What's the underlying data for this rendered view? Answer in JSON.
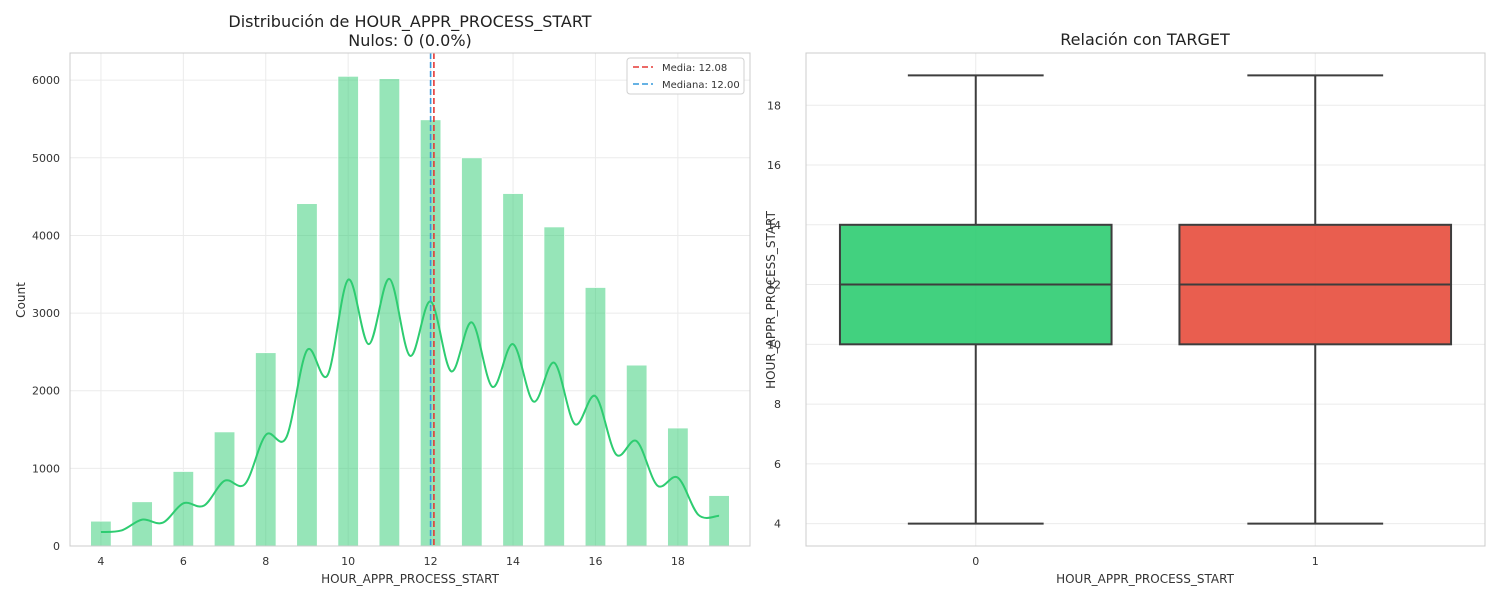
{
  "chart_data": [
    {
      "type": "bar",
      "title": "Distribución de HOUR_APPR_PROCESS_START",
      "subtitle": "Nulos: 0 (0.0%)",
      "xlabel": "HOUR_APPR_PROCESS_START",
      "ylabel": "Count",
      "xlim": [
        3.25,
        19.75
      ],
      "ylim": [
        0,
        6350
      ],
      "xticks": [
        4,
        6,
        8,
        10,
        12,
        14,
        16,
        18
      ],
      "yticks": [
        0,
        1000,
        2000,
        3000,
        4000,
        5000,
        6000
      ],
      "grid": true,
      "legend_position": "top-right",
      "bin_width": 0.5,
      "bars": [
        {
          "x": 4,
          "value": 320
        },
        {
          "x": 5,
          "value": 570
        },
        {
          "x": 6,
          "value": 960
        },
        {
          "x": 7,
          "value": 1470
        },
        {
          "x": 8,
          "value": 2490
        },
        {
          "x": 9,
          "value": 4410
        },
        {
          "x": 10,
          "value": 6050
        },
        {
          "x": 11,
          "value": 6020
        },
        {
          "x": 12,
          "value": 5490
        },
        {
          "x": 13,
          "value": 5000
        },
        {
          "x": 14,
          "value": 4540
        },
        {
          "x": 15,
          "value": 4110
        },
        {
          "x": 16,
          "value": 3330
        },
        {
          "x": 17,
          "value": 2330
        },
        {
          "x": 18,
          "value": 1520
        },
        {
          "x": 19,
          "value": 650
        }
      ],
      "kde": {
        "x": [
          4.0,
          4.5,
          5.0,
          5.5,
          6.0,
          6.5,
          7.0,
          7.5,
          8.0,
          8.5,
          9.0,
          9.5,
          10.0,
          10.5,
          11.0,
          11.5,
          12.0,
          12.5,
          13.0,
          13.5,
          14.0,
          14.5,
          15.0,
          15.5,
          16.0,
          16.5,
          17.0,
          17.5,
          18.0,
          18.5,
          19.0
        ],
        "y": [
          180,
          200,
          340,
          300,
          550,
          520,
          840,
          800,
          1430,
          1400,
          2520,
          2200,
          3430,
          2600,
          3440,
          2450,
          3150,
          2250,
          2880,
          2050,
          2600,
          1860,
          2360,
          1570,
          1930,
          1180,
          1350,
          780,
          880,
          400,
          390
        ]
      },
      "colors": {
        "bars": "#2ecc71",
        "kde": "#2ecc71",
        "mean": "#e53935",
        "median": "#3498db"
      },
      "reference_lines": [
        {
          "name": "Media",
          "value": 12.08,
          "label": "Media: 12.08"
        },
        {
          "name": "Mediana",
          "value": 12.0,
          "label": "Mediana: 12.00"
        }
      ]
    },
    {
      "type": "box",
      "title": "Relación con TARGET",
      "xlabel": "HOUR_APPR_PROCESS_START",
      "ylabel": "HOUR_APPR_PROCESS_START",
      "categories": [
        "0",
        "1"
      ],
      "ylim": [
        3.25,
        19.75
      ],
      "yticks": [
        4,
        6,
        8,
        10,
        12,
        14,
        16,
        18
      ],
      "grid": true,
      "boxes": [
        {
          "category": "0",
          "min": 4,
          "q1": 10,
          "median": 12,
          "q3": 14,
          "max": 19,
          "color": "#2ecc71"
        },
        {
          "category": "1",
          "min": 4,
          "q1": 10,
          "median": 12,
          "q3": 14,
          "max": 19,
          "color": "#e74c3c"
        }
      ]
    }
  ]
}
